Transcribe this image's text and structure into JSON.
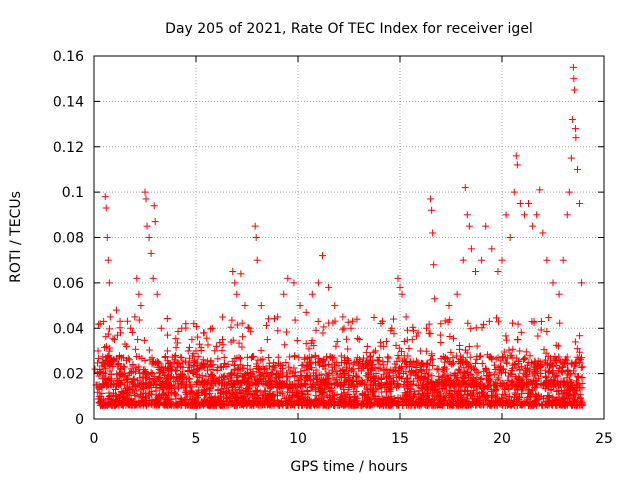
{
  "chart_data": {
    "type": "scatter",
    "title": "Day 205 of 2021, Rate Of TEC Index for receiver igel",
    "xlabel": "GPS time / hours",
    "ylabel": "ROTI / TECUs",
    "xlim": [
      0,
      25
    ],
    "ylim": [
      0,
      0.16
    ],
    "xticks": [
      "0",
      "5",
      "10",
      "15",
      "20",
      "25"
    ],
    "xtick_values": [
      0,
      5,
      10,
      15,
      20,
      25
    ],
    "yticks": [
      "0",
      "0.02",
      "0.04",
      "0.06",
      "0.08",
      "0.1",
      "0.12",
      "0.14",
      "0.16"
    ],
    "ytick_values": [
      0,
      0.02,
      0.04,
      0.06,
      0.08,
      0.1,
      0.12,
      0.14,
      0.16
    ],
    "grid": true,
    "marker": "plus",
    "color": "#ff0000",
    "series": [
      {
        "points": [
          [
            0.05,
            0.022
          ],
          [
            0.1,
            0.015
          ],
          [
            0.2,
            0.03
          ],
          [
            0.3,
            0.042
          ],
          [
            0.4,
            0.025
          ],
          [
            0.5,
            0.018
          ],
          [
            0.55,
            0.098
          ],
          [
            0.6,
            0.093
          ],
          [
            0.65,
            0.08
          ],
          [
            0.7,
            0.07
          ],
          [
            0.75,
            0.06
          ],
          [
            0.8,
            0.045
          ],
          [
            1.0,
            0.035
          ],
          [
            1.1,
            0.048
          ],
          [
            1.3,
            0.038
          ],
          [
            1.6,
            0.032
          ],
          [
            1.8,
            0.04
          ],
          [
            2.0,
            0.045
          ],
          [
            2.1,
            0.062
          ],
          [
            2.2,
            0.055
          ],
          [
            2.3,
            0.05
          ],
          [
            2.5,
            0.1
          ],
          [
            2.55,
            0.097
          ],
          [
            2.6,
            0.085
          ],
          [
            2.7,
            0.08
          ],
          [
            2.8,
            0.073
          ],
          [
            2.9,
            0.062
          ],
          [
            2.95,
            0.094
          ],
          [
            3.0,
            0.087
          ],
          [
            3.1,
            0.055
          ],
          [
            3.3,
            0.04
          ],
          [
            3.6,
            0.03
          ],
          [
            4.0,
            0.028
          ],
          [
            4.3,
            0.04
          ],
          [
            4.5,
            0.042
          ],
          [
            4.8,
            0.035
          ],
          [
            5.0,
            0.03
          ],
          [
            5.4,
            0.038
          ],
          [
            5.8,
            0.04
          ],
          [
            6.0,
            0.032
          ],
          [
            6.3,
            0.035
          ],
          [
            6.8,
            0.065
          ],
          [
            6.9,
            0.06
          ],
          [
            7.0,
            0.055
          ],
          [
            7.2,
            0.064
          ],
          [
            7.4,
            0.05
          ],
          [
            7.6,
            0.04
          ],
          [
            7.9,
            0.085
          ],
          [
            7.95,
            0.08
          ],
          [
            8.0,
            0.07
          ],
          [
            8.2,
            0.05
          ],
          [
            8.5,
            0.035
          ],
          [
            9.0,
            0.045
          ],
          [
            9.3,
            0.055
          ],
          [
            9.5,
            0.062
          ],
          [
            9.8,
            0.06
          ],
          [
            10.1,
            0.05
          ],
          [
            10.4,
            0.047
          ],
          [
            10.7,
            0.055
          ],
          [
            11.0,
            0.06
          ],
          [
            11.2,
            0.072
          ],
          [
            11.5,
            0.058
          ],
          [
            11.8,
            0.05
          ],
          [
            12.2,
            0.045
          ],
          [
            12.6,
            0.04
          ],
          [
            13.0,
            0.035
          ],
          [
            13.4,
            0.032
          ],
          [
            13.8,
            0.03
          ],
          [
            14.2,
            0.032
          ],
          [
            14.6,
            0.04
          ],
          [
            14.9,
            0.062
          ],
          [
            15.0,
            0.058
          ],
          [
            15.1,
            0.055
          ],
          [
            15.3,
            0.045
          ],
          [
            15.6,
            0.035
          ],
          [
            16.0,
            0.03
          ],
          [
            16.3,
            0.04
          ],
          [
            16.5,
            0.097
          ],
          [
            16.55,
            0.092
          ],
          [
            16.6,
            0.082
          ],
          [
            16.65,
            0.068
          ],
          [
            16.7,
            0.053
          ],
          [
            17.0,
            0.042
          ],
          [
            17.4,
            0.05
          ],
          [
            17.8,
            0.055
          ],
          [
            18.1,
            0.07
          ],
          [
            18.2,
            0.102
          ],
          [
            18.3,
            0.09
          ],
          [
            18.4,
            0.085
          ],
          [
            18.5,
            0.075
          ],
          [
            18.7,
            0.065
          ],
          [
            19.0,
            0.07
          ],
          [
            19.2,
            0.085
          ],
          [
            19.5,
            0.075
          ],
          [
            19.8,
            0.065
          ],
          [
            20.0,
            0.07
          ],
          [
            20.2,
            0.09
          ],
          [
            20.4,
            0.08
          ],
          [
            20.6,
            0.1
          ],
          [
            20.7,
            0.116
          ],
          [
            20.75,
            0.112
          ],
          [
            20.9,
            0.095
          ],
          [
            21.1,
            0.09
          ],
          [
            21.3,
            0.095
          ],
          [
            21.5,
            0.085
          ],
          [
            21.7,
            0.09
          ],
          [
            21.85,
            0.101
          ],
          [
            22.0,
            0.082
          ],
          [
            22.2,
            0.07
          ],
          [
            22.5,
            0.06
          ],
          [
            22.8,
            0.055
          ],
          [
            23.0,
            0.07
          ],
          [
            23.2,
            0.09
          ],
          [
            23.3,
            0.1
          ],
          [
            23.4,
            0.115
          ],
          [
            23.45,
            0.132
          ],
          [
            23.5,
            0.155
          ],
          [
            23.52,
            0.15
          ],
          [
            23.55,
            0.145
          ],
          [
            23.6,
            0.128
          ],
          [
            23.62,
            0.124
          ],
          [
            23.7,
            0.11
          ],
          [
            23.8,
            0.095
          ],
          [
            23.9,
            0.06
          ]
        ]
      }
    ]
  }
}
